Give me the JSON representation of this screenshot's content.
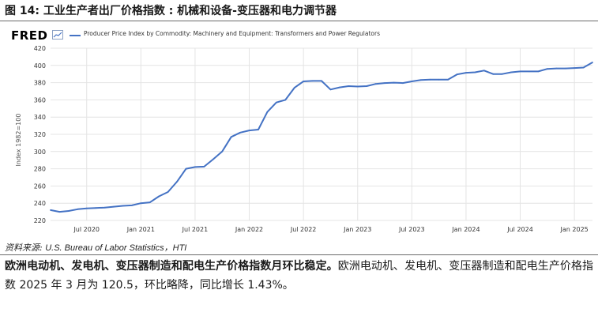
{
  "figure": {
    "title": "图 14: 工业生产者出厂价格指数 : 机械和设备-变压器和电力调节器"
  },
  "fred": {
    "logo_text": "FRED",
    "legend_label": "Producer Price Index by Commodity: Machinery and Equipment: Transformers and Power Regulators",
    "line_color": "#4472c4"
  },
  "chart_data": {
    "type": "line",
    "title": "",
    "xlabel": "",
    "ylabel": "Index 1982=100",
    "ylim": [
      220,
      420
    ],
    "yticks": [
      220,
      240,
      260,
      280,
      300,
      320,
      340,
      360,
      380,
      400,
      420
    ],
    "xlim": [
      "2020-03",
      "2025-03"
    ],
    "xticks": [
      {
        "label": "Jul 2020",
        "date": "2020-07"
      },
      {
        "label": "Jan 2021",
        "date": "2021-01"
      },
      {
        "label": "Jul 2021",
        "date": "2021-07"
      },
      {
        "label": "Jan 2022",
        "date": "2022-01"
      },
      {
        "label": "Jul 2022",
        "date": "2022-07"
      },
      {
        "label": "Jan 2023",
        "date": "2023-01"
      },
      {
        "label": "Jul 2023",
        "date": "2023-07"
      },
      {
        "label": "Jan 2024",
        "date": "2024-01"
      },
      {
        "label": "Jul 2024",
        "date": "2024-07"
      },
      {
        "label": "Jan 2025",
        "date": "2025-01"
      }
    ],
    "grid": true,
    "series": [
      {
        "name": "Producer Price Index by Commodity: Machinery and Equipment: Transformers and Power Regulators",
        "color": "#4472c4",
        "points": [
          [
            "2020-03",
            232
          ],
          [
            "2020-04",
            230
          ],
          [
            "2020-05",
            231
          ],
          [
            "2020-06",
            233
          ],
          [
            "2020-07",
            234
          ],
          [
            "2020-08",
            234.5
          ],
          [
            "2020-09",
            235
          ],
          [
            "2020-10",
            236
          ],
          [
            "2020-11",
            237
          ],
          [
            "2020-12",
            237.5
          ],
          [
            "2021-01",
            240
          ],
          [
            "2021-02",
            241
          ],
          [
            "2021-03",
            248
          ],
          [
            "2021-04",
            253
          ],
          [
            "2021-05",
            265
          ],
          [
            "2021-06",
            280
          ],
          [
            "2021-07",
            282
          ],
          [
            "2021-08",
            282.5
          ],
          [
            "2021-09",
            291
          ],
          [
            "2021-10",
            300
          ],
          [
            "2021-11",
            317
          ],
          [
            "2021-12",
            322
          ],
          [
            "2022-01",
            324.5
          ],
          [
            "2022-02",
            325.5
          ],
          [
            "2022-03",
            346
          ],
          [
            "2022-04",
            357
          ],
          [
            "2022-05",
            360
          ],
          [
            "2022-06",
            374
          ],
          [
            "2022-07",
            381.5
          ],
          [
            "2022-08",
            382
          ],
          [
            "2022-09",
            382
          ],
          [
            "2022-10",
            372
          ],
          [
            "2022-11",
            374.5
          ],
          [
            "2022-12",
            376
          ],
          [
            "2023-01",
            375.5
          ],
          [
            "2023-02",
            376
          ],
          [
            "2023-03",
            378.5
          ],
          [
            "2023-04",
            379.5
          ],
          [
            "2023-05",
            380
          ],
          [
            "2023-06",
            379.5
          ],
          [
            "2023-07",
            381.5
          ],
          [
            "2023-08",
            383
          ],
          [
            "2023-09",
            383.5
          ],
          [
            "2023-10",
            383.5
          ],
          [
            "2023-11",
            383.5
          ],
          [
            "2023-12",
            389.5
          ],
          [
            "2024-01",
            391.5
          ],
          [
            "2024-02",
            392
          ],
          [
            "2024-03",
            394
          ],
          [
            "2024-04",
            390
          ],
          [
            "2024-05",
            390
          ],
          [
            "2024-06",
            392
          ],
          [
            "2024-07",
            393
          ],
          [
            "2024-08",
            393
          ],
          [
            "2024-09",
            393
          ],
          [
            "2024-10",
            396
          ],
          [
            "2024-11",
            396.5
          ],
          [
            "2024-12",
            396.5
          ],
          [
            "2025-01",
            397
          ],
          [
            "2025-02",
            397.5
          ],
          [
            "2025-03",
            403.5
          ]
        ]
      }
    ]
  },
  "source": {
    "label": "资料来源:",
    "text": "U.S. Bureau of Labor Statistics，HTI"
  },
  "paragraph": {
    "bold": "欧洲电动机、发电机、变压器制造和配电生产价格指数月环比稳定。",
    "body": "欧洲电动机、发电机、变压器制造和配电生产价格指数 2025 年 3 月为 120.5，环比略降，同比增长 1.43%。"
  }
}
